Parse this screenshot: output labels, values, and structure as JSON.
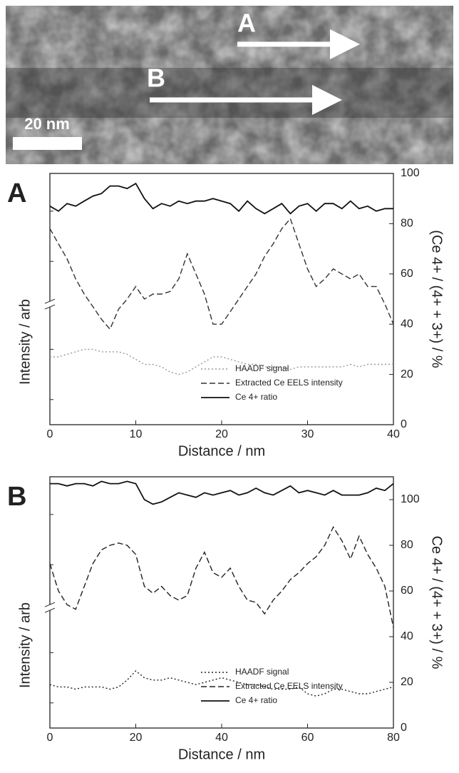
{
  "image": {
    "arrow_labels": [
      "A",
      "B"
    ],
    "scale_bar": "20 nm"
  },
  "chart_data": [
    {
      "type": "line",
      "panel_label": "A",
      "xlabel": "Distance / nm",
      "ylabel": "Intensity / arb",
      "y2label": "(Ce 4+ / (4+ + 3+) / %",
      "xlim": [
        0,
        40
      ],
      "xticks": [
        0,
        10,
        20,
        30,
        40
      ],
      "y2lim": [
        0,
        100
      ],
      "y2ticks": [
        0,
        20,
        40,
        60,
        80,
        100
      ],
      "legend": "lower right",
      "x": [
        0,
        1,
        2,
        3,
        4,
        5,
        6,
        7,
        8,
        9,
        10,
        11,
        12,
        13,
        14,
        15,
        16,
        17,
        18,
        19,
        20,
        21,
        22,
        23,
        24,
        25,
        26,
        27,
        28,
        29,
        30,
        31,
        32,
        33,
        34,
        35,
        36,
        37,
        38,
        39,
        40
      ],
      "series": [
        {
          "name": "HAADF signal",
          "color": "#999999",
          "dash": "dotted",
          "axis": "y2",
          "values": [
            27,
            27,
            28,
            29,
            30,
            30,
            29,
            29,
            29,
            28,
            26,
            24,
            24,
            23,
            21,
            20,
            21,
            23,
            25,
            27,
            27,
            26,
            25,
            24,
            24,
            23,
            23,
            23,
            22,
            23,
            23,
            23,
            23,
            23,
            23,
            24,
            23,
            24,
            24,
            24,
            24
          ]
        },
        {
          "name": "Extracted Ce EELS intensity",
          "color": "#333333",
          "dash": "dashed",
          "axis": "y2",
          "values": [
            78,
            72,
            66,
            58,
            52,
            47,
            42,
            38,
            46,
            50,
            55,
            50,
            52,
            52,
            53,
            58,
            68,
            60,
            52,
            40,
            40,
            45,
            50,
            55,
            60,
            67,
            72,
            78,
            82,
            72,
            62,
            55,
            58,
            62,
            60,
            58,
            60,
            55,
            55,
            48,
            40
          ]
        },
        {
          "name": "Ce 4+ ratio",
          "color": "#111111",
          "dash": "solid",
          "axis": "y2",
          "values": [
            87,
            85,
            88,
            87,
            89,
            91,
            92,
            95,
            95,
            94,
            96,
            90,
            86,
            88,
            87,
            89,
            88,
            89,
            89,
            90,
            89,
            88,
            85,
            89,
            86,
            84,
            86,
            88,
            84,
            87,
            88,
            85,
            88,
            88,
            86,
            89,
            86,
            87,
            85,
            86,
            86
          ]
        }
      ]
    },
    {
      "type": "line",
      "panel_label": "B",
      "xlabel": "Distance / nm",
      "ylabel": "Intensity / arb",
      "y2label": "Ce 4+ / (4+ + 3+) / %",
      "xlim": [
        0,
        80
      ],
      "xticks": [
        0,
        20,
        40,
        60,
        80
      ],
      "y2lim": [
        0,
        110
      ],
      "y2ticks": [
        0,
        20,
        40,
        60,
        80,
        100
      ],
      "legend": "lower right",
      "x": [
        0,
        2,
        4,
        6,
        8,
        10,
        12,
        14,
        16,
        18,
        20,
        22,
        24,
        26,
        28,
        30,
        32,
        34,
        36,
        38,
        40,
        42,
        44,
        46,
        48,
        50,
        52,
        54,
        56,
        58,
        60,
        62,
        64,
        66,
        68,
        70,
        72,
        74,
        76,
        78,
        80
      ],
      "series": [
        {
          "name": "HAADF signal",
          "color": "#222222",
          "dash": "dotted",
          "axis": "y2",
          "values": [
            19,
            18,
            18,
            17,
            18,
            18,
            18,
            17,
            18,
            21,
            25,
            22,
            21,
            21,
            22,
            21,
            20,
            19,
            20,
            21,
            22,
            21,
            20,
            19,
            19,
            18,
            17,
            17,
            17,
            18,
            15,
            14,
            15,
            17,
            17,
            16,
            15,
            15,
            16,
            17,
            18
          ]
        },
        {
          "name": "Extracted Ce EELS intensity",
          "color": "#222222",
          "dash": "dashed",
          "axis": "y2",
          "values": [
            72,
            60,
            54,
            52,
            62,
            72,
            78,
            80,
            81,
            80,
            76,
            62,
            59,
            62,
            58,
            56,
            58,
            70,
            77,
            68,
            66,
            70,
            62,
            56,
            55,
            50,
            56,
            60,
            65,
            68,
            72,
            75,
            80,
            88,
            82,
            74,
            84,
            76,
            70,
            62,
            44
          ]
        },
        {
          "name": "Ce 4+ ratio",
          "color": "#111111",
          "dash": "solid",
          "axis": "y2",
          "values": [
            107,
            107,
            106,
            107,
            107,
            106,
            108,
            107,
            107,
            108,
            107,
            100,
            98,
            99,
            101,
            103,
            102,
            101,
            103,
            102,
            103,
            104,
            102,
            103,
            105,
            103,
            102,
            104,
            106,
            103,
            104,
            103,
            102,
            104,
            102,
            102,
            102,
            103,
            105,
            104,
            107
          ]
        }
      ]
    }
  ]
}
